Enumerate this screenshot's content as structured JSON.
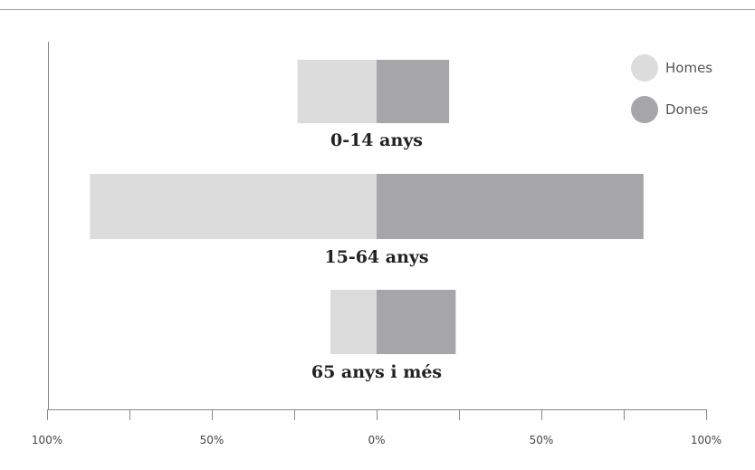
{
  "chart_data": {
    "type": "bar",
    "orientation": "horizontal-diverging",
    "categories": [
      "0-14 anys",
      "15-64 anys",
      "65 anys i més"
    ],
    "series": [
      {
        "name": "Homes",
        "values": [
          24,
          87,
          14
        ]
      },
      {
        "name": "Dones",
        "values": [
          22,
          81,
          24
        ]
      }
    ],
    "xlim": [
      -100,
      100
    ],
    "ticks": [
      -100,
      -75,
      -50,
      -25,
      0,
      25,
      50,
      75,
      100
    ],
    "tick_labels": [
      {
        "value": -100,
        "label": "100%"
      },
      {
        "value": -50,
        "label": "50%"
      },
      {
        "value": 0,
        "label": "0%"
      },
      {
        "value": 50,
        "label": "50%"
      },
      {
        "value": 100,
        "label": "100%"
      }
    ],
    "legend_position": "top-right",
    "grid": false,
    "colors": {
      "Homes": "#dcdcdd",
      "Dones": "#a6a6a8",
      "axis": "#888888",
      "top_rule": "#aaaaaa"
    }
  }
}
